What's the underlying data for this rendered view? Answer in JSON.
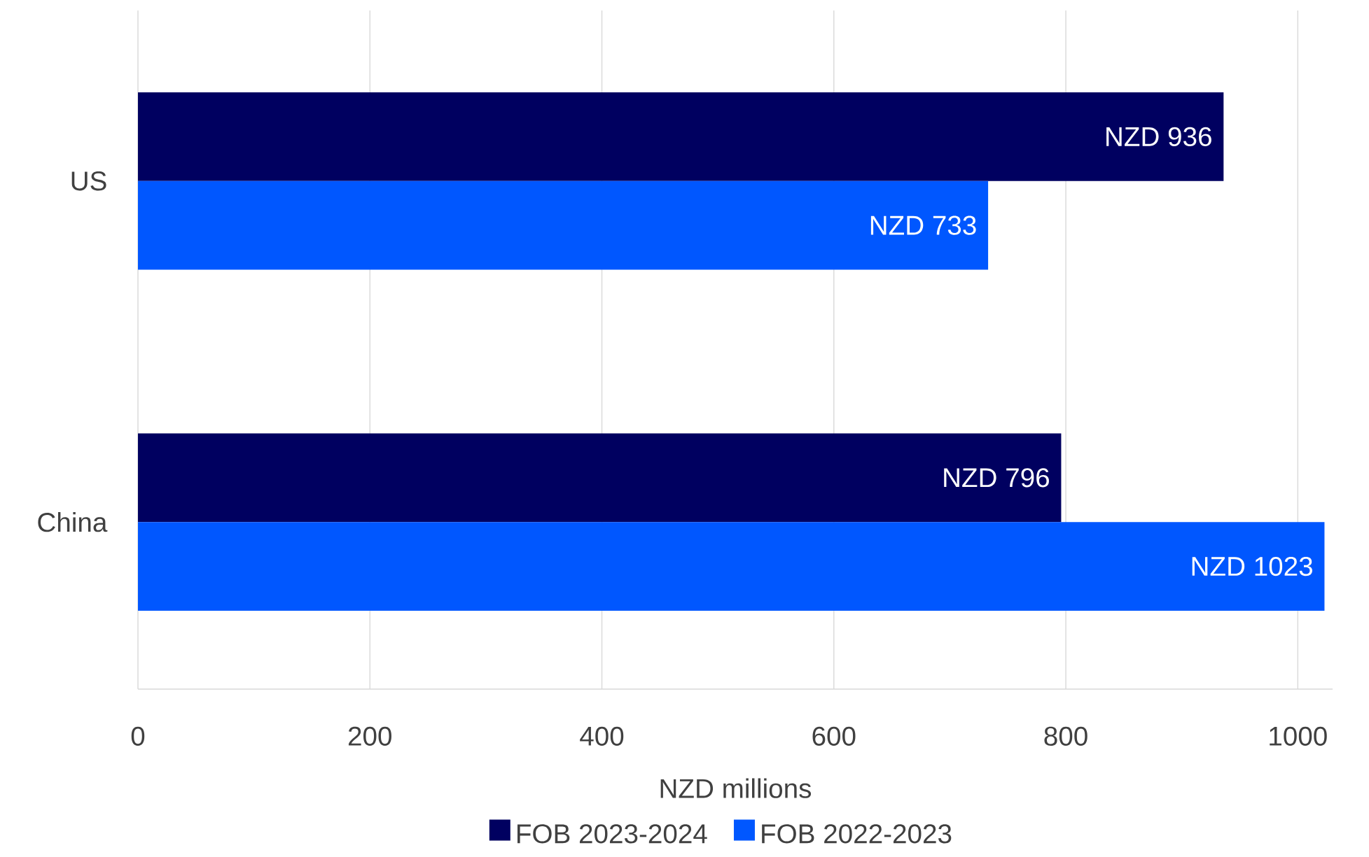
{
  "chart_data": {
    "type": "bar",
    "orientation": "horizontal",
    "xlabel": "NZD millions",
    "categories": [
      "US",
      "China"
    ],
    "series": [
      {
        "name": "FOB 2023-2024",
        "color": "#000060",
        "values": [
          936,
          796
        ],
        "value_labels": [
          "NZD 936",
          "NZD  796"
        ]
      },
      {
        "name": "FOB 2022-2023",
        "color": "#0057ff",
        "values": [
          733,
          1023
        ],
        "value_labels": [
          "NZD 733",
          "NZD  1023"
        ]
      }
    ],
    "xlim": [
      0,
      1030
    ],
    "xticks": [
      0,
      200,
      400,
      600,
      800,
      1000
    ],
    "grid": "x",
    "legend": "bottom"
  }
}
